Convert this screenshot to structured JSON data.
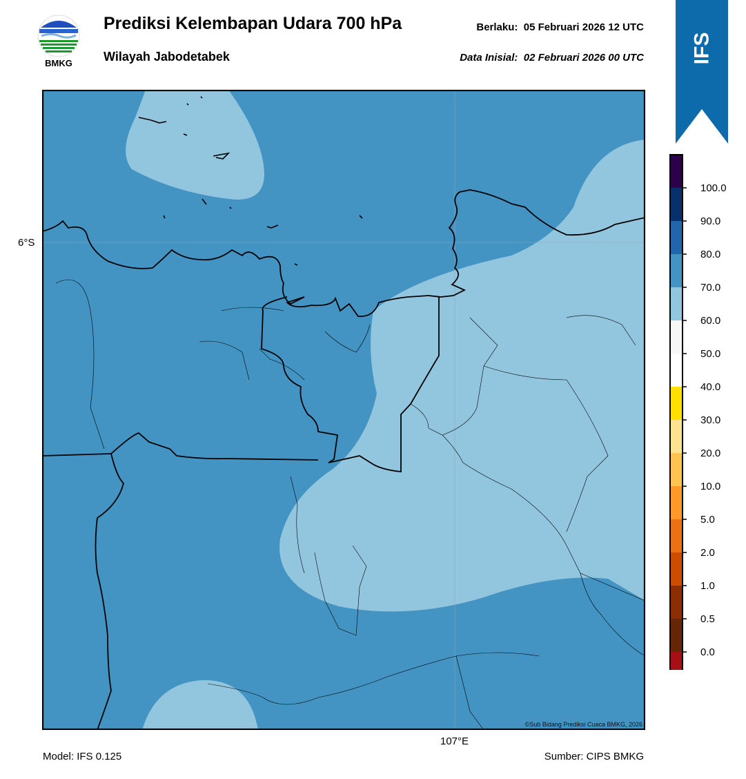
{
  "header": {
    "title": "Prediksi Kelembapan Udara 700 hPa",
    "region": "Wilayah Jabodetabek",
    "valid_label": "Berlaku:",
    "valid_time": "05 Februari 2026 12 UTC",
    "init_label": "Data Inisial:",
    "init_time": "02 Februari 2026 00 UTC"
  },
  "logo": {
    "name": "bmkg-logo",
    "text": "BMKG"
  },
  "ribbon": {
    "text": "IFS",
    "color": "#0d6aab"
  },
  "map": {
    "lat_label": "6°S",
    "lon_label": "107°E",
    "credit": "©Sub Bidang Prediksi Cuaca BMKG, 2026",
    "dominant_class_color": "#4393c3",
    "secondary_class_color": "#92c5de"
  },
  "colorbar": {
    "levels": [
      {
        "label": "100.0",
        "color": "#2d004b"
      },
      {
        "label": "90.0",
        "color": "#08306b"
      },
      {
        "label": "80.0",
        "color": "#2166ac"
      },
      {
        "label": "70.0",
        "color": "#4393c3"
      },
      {
        "label": "60.0",
        "color": "#92c5de"
      },
      {
        "label": "50.0",
        "color": "#f7f7f7"
      },
      {
        "label": "40.0",
        "color": "#ffffff"
      },
      {
        "label": "30.0",
        "color": "#ffe000"
      },
      {
        "label": "20.0",
        "color": "#fee391"
      },
      {
        "label": "10.0",
        "color": "#fec44f"
      },
      {
        "label": "5.0",
        "color": "#fe9929"
      },
      {
        "label": "2.0",
        "color": "#ec7014"
      },
      {
        "label": "1.0",
        "color": "#cc4c02"
      },
      {
        "label": "0.5",
        "color": "#8c2d04"
      },
      {
        "label": "0.0",
        "color": "#662506"
      },
      {
        "label": "",
        "color": "#a50f15"
      },
      {
        "label": "",
        "color": "#de2d26"
      }
    ]
  },
  "footer": {
    "model": "Model: IFS 0.125",
    "source": "Sumber: CIPS BMKG"
  }
}
